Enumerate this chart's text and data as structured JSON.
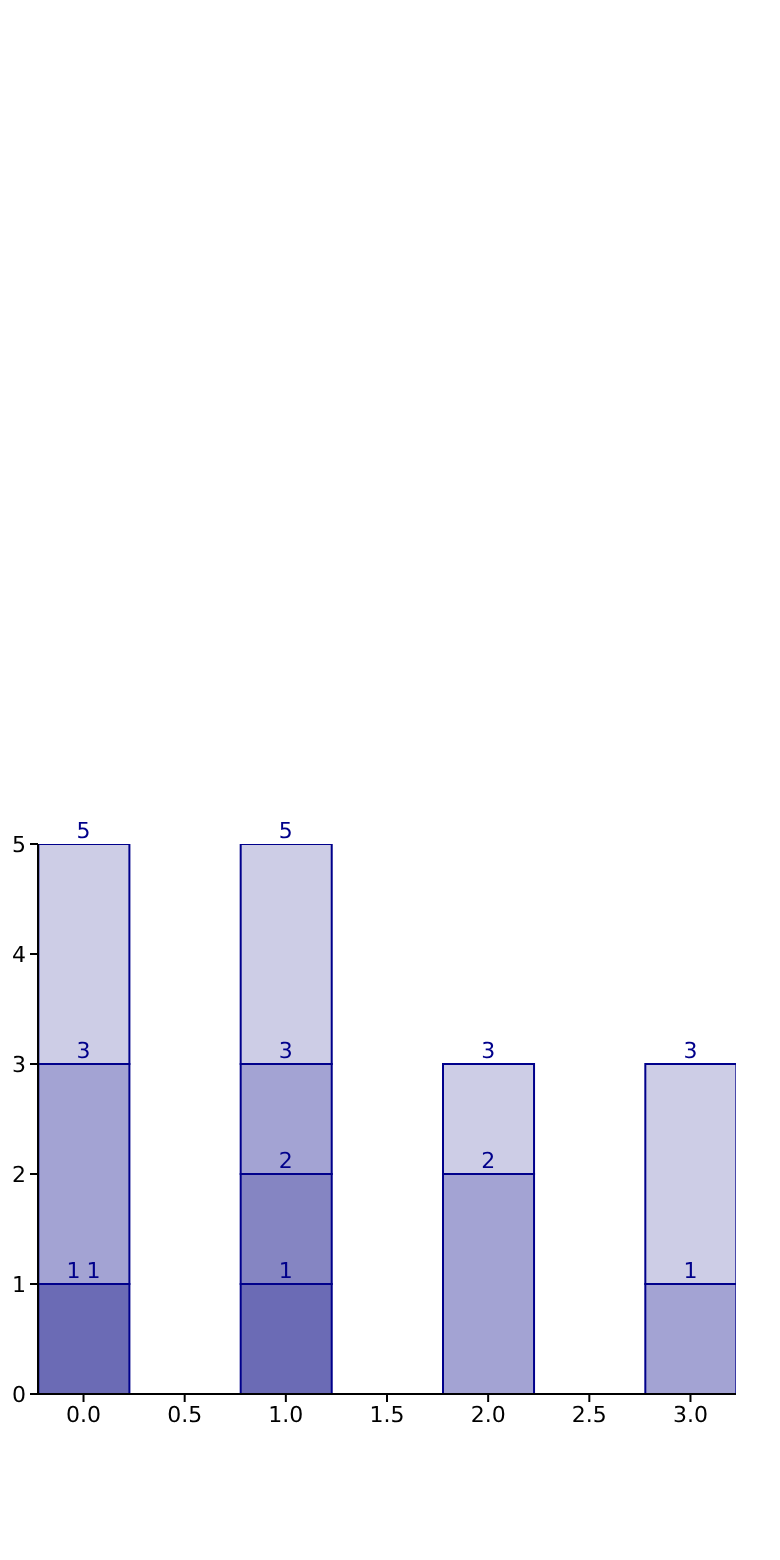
{
  "chart_data": {
    "type": "bar",
    "stacked": true,
    "x": [
      0,
      1,
      2,
      3
    ],
    "series": [
      {
        "color": "#6b6bb5",
        "values": [
          1,
          1,
          0,
          0
        ]
      },
      {
        "color": "#8585c2",
        "values": [
          0,
          1,
          0,
          0
        ]
      },
      {
        "color": "#a3a3d3",
        "values": [
          2,
          1,
          2,
          1
        ]
      },
      {
        "color": "#cdcde6",
        "values": [
          2,
          2,
          1,
          2
        ]
      }
    ],
    "annotations": [
      {
        "text": "1",
        "x": 0,
        "y": 1
      },
      {
        "text": "1",
        "x": 0,
        "y": 1
      },
      {
        "text": "3",
        "x": 0,
        "y": 3
      },
      {
        "text": "5",
        "x": 0,
        "y": 5
      },
      {
        "text": "1",
        "x": 1,
        "y": 1
      },
      {
        "text": "2",
        "x": 1,
        "y": 2
      },
      {
        "text": "3",
        "x": 1,
        "y": 3
      },
      {
        "text": "5",
        "x": 1,
        "y": 5
      },
      {
        "text": "2",
        "x": 2,
        "y": 2
      },
      {
        "text": "3",
        "x": 2,
        "y": 3
      },
      {
        "text": "1",
        "x": 3,
        "y": 1
      },
      {
        "text": "3",
        "x": 3,
        "y": 3
      }
    ],
    "xlim": [
      -0.225,
      3.225
    ],
    "xticks": [
      {
        "value": 0,
        "label": "0.0"
      },
      {
        "value": 0.5,
        "label": "0.5"
      },
      {
        "value": 1,
        "label": "1.0"
      },
      {
        "value": 1.5,
        "label": "1.5"
      },
      {
        "value": 2,
        "label": "2.0"
      },
      {
        "value": 2.5,
        "label": "2.5"
      },
      {
        "value": 3,
        "label": "3.0"
      }
    ],
    "ylim": [
      0,
      5
    ],
    "yticks": [
      0,
      1,
      2,
      3,
      4,
      5
    ],
    "grid": false,
    "legend": false
  }
}
